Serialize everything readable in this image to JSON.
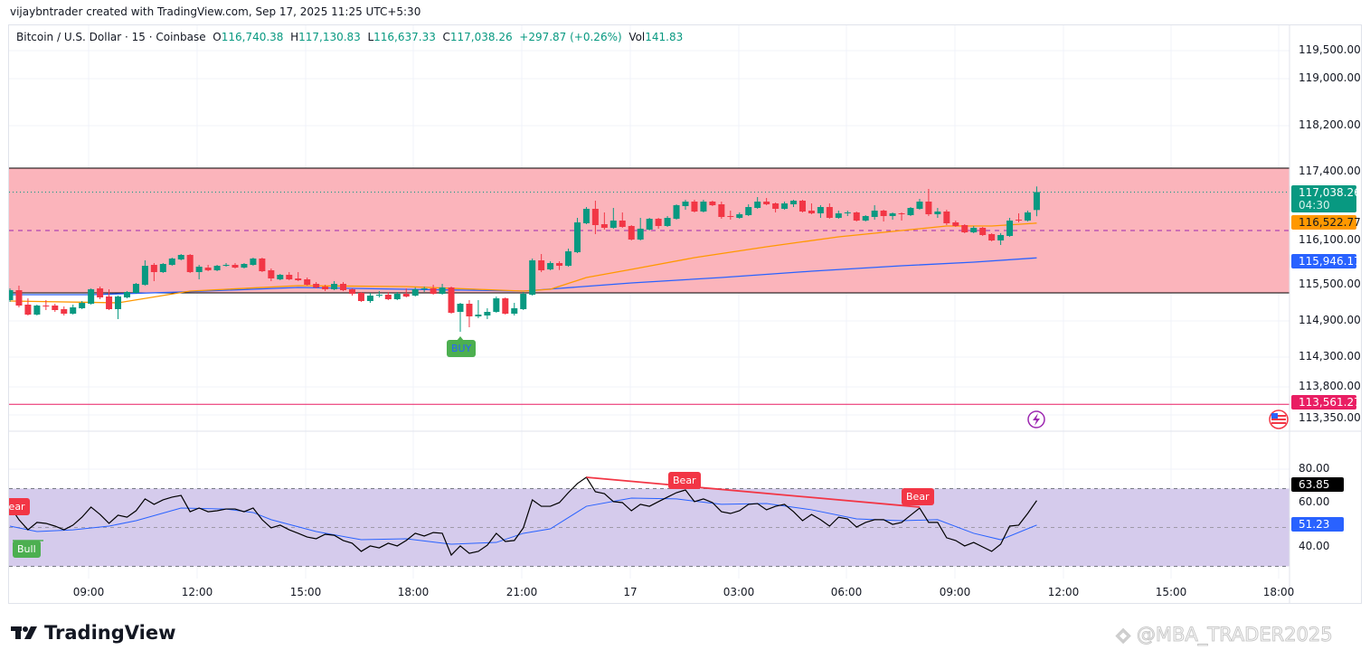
{
  "header": {
    "attribution": "vijaybntrader created with TradingView.com, Sep 17, 2025 11:25 UTC+5:30",
    "symbol": "Bitcoin / U.S. Dollar · 15 · Coinbase",
    "o_label": "O",
    "o": "116,740.38",
    "h_label": "H",
    "h": "117,130.83",
    "l_label": "L",
    "l": "116,637.33",
    "c_label": "C",
    "c": "117,038.26",
    "change": "+297.87 (+0.26%)",
    "vol_label": "Vol",
    "vol": "141.83"
  },
  "price_axis": [
    "119,500.00",
    "119,000.00",
    "118,200.00",
    "117,400.00",
    "116,100.00",
    "115,500.00",
    "114,900.00",
    "114,300.00",
    "113,800.00",
    "113,350.00"
  ],
  "time_axis": [
    "09:00",
    "12:00",
    "15:00",
    "18:00",
    "21:00",
    "17",
    "03:00",
    "06:00",
    "09:00",
    "12:00",
    "15:00",
    "18:00"
  ],
  "rsi_axis": [
    "80.00",
    "60.00",
    "40.00"
  ],
  "tags": {
    "last_price": "117,038.26",
    "countdown": "04:30",
    "ma_orange": "116,522.77",
    "ma_blue": "115,946.17",
    "level": "113,561.27",
    "rsi": "63.85",
    "rsi_ma": "51.23"
  },
  "signals": {
    "buy": "BUY",
    "bear_left": "Bear",
    "bull": "Bull",
    "bear_1": "Bear",
    "bear_2": "Bear"
  },
  "icons": {
    "lightning": "lightning-icon",
    "flag": "us-flag-icon",
    "logo": "tradingview-logo"
  },
  "footer": {
    "logo": "TradingView",
    "watermark": "@MBA_TRADER2025"
  },
  "colors": {
    "up": "#089981",
    "down": "#f23645",
    "zone": "#fbb4bb",
    "ma_orange": "#ff9800",
    "ma_blue": "#2962ff",
    "rsi_band": "#d5cbec",
    "level_line": "#e91e63",
    "divergence": "#f23645"
  },
  "chart_data": {
    "type": "candlestick",
    "interval": "15",
    "ylim": [
      113350,
      119500
    ],
    "zone": [
      115365,
      117435
    ],
    "current_price": 117038.26,
    "dashed_level": 116400,
    "horizontal_level": 113561.27,
    "candles": [
      [
        115245,
        115440,
        115215,
        115410
      ],
      [
        115410,
        115485,
        115125,
        115155
      ],
      [
        115170,
        115275,
        114990,
        115005
      ],
      [
        115005,
        115170,
        114990,
        115155
      ],
      [
        115155,
        115245,
        115080,
        115140
      ],
      [
        115155,
        115185,
        115050,
        115080
      ],
      [
        115095,
        115140,
        114990,
        115020
      ],
      [
        115020,
        115170,
        115005,
        115125
      ],
      [
        115110,
        115230,
        115095,
        115200
      ],
      [
        115185,
        115440,
        115170,
        115425
      ],
      [
        115440,
        115470,
        115260,
        115290
      ],
      [
        115305,
        115425,
        115080,
        115095
      ],
      [
        115095,
        115320,
        114930,
        115305
      ],
      [
        115290,
        115395,
        115275,
        115380
      ],
      [
        115365,
        115530,
        115350,
        115515
      ],
      [
        115500,
        115905,
        115485,
        115815
      ],
      [
        115830,
        115860,
        115560,
        115710
      ],
      [
        115710,
        115860,
        115695,
        115845
      ],
      [
        115830,
        115950,
        115815,
        115935
      ],
      [
        115920,
        116010,
        115905,
        115995
      ],
      [
        115995,
        116010,
        115695,
        115710
      ],
      [
        115710,
        115830,
        115590,
        115800
      ],
      [
        115785,
        115830,
        115725,
        115740
      ],
      [
        115740,
        115830,
        115725,
        115815
      ],
      [
        115815,
        115860,
        115800,
        115830
      ],
      [
        115830,
        115860,
        115770,
        115785
      ],
      [
        115785,
        115860,
        115770,
        115845
      ],
      [
        115830,
        115950,
        115815,
        115935
      ],
      [
        115935,
        115950,
        115710,
        115725
      ],
      [
        115740,
        115770,
        115560,
        115605
      ],
      [
        115590,
        115680,
        115575,
        115665
      ],
      [
        115665,
        115710,
        115575,
        115590
      ],
      [
        115605,
        115710,
        115560,
        115575
      ],
      [
        115590,
        115620,
        115485,
        115500
      ],
      [
        115515,
        115545,
        115440,
        115455
      ],
      [
        115470,
        115500,
        115395,
        115425
      ],
      [
        115425,
        115560,
        115410,
        115515
      ],
      [
        115515,
        115545,
        115395,
        115410
      ],
      [
        115425,
        115440,
        115320,
        115350
      ],
      [
        115365,
        115380,
        115215,
        115230
      ],
      [
        115230,
        115365,
        115200,
        115320
      ],
      [
        115320,
        115395,
        115290,
        115335
      ],
      [
        115335,
        115380,
        115245,
        115260
      ],
      [
        115260,
        115380,
        115245,
        115350
      ],
      [
        115350,
        115440,
        115290,
        115305
      ],
      [
        115320,
        115455,
        115305,
        115425
      ],
      [
        115425,
        115470,
        115380,
        115440
      ],
      [
        115440,
        115500,
        115335,
        115350
      ],
      [
        115350,
        115515,
        115335,
        115455
      ],
      [
        115455,
        115470,
        115020,
        115035
      ],
      [
        115050,
        115200,
        114720,
        115185
      ],
      [
        115185,
        115245,
        114795,
        114975
      ],
      [
        114975,
        115245,
        114945,
        115005
      ],
      [
        114990,
        115110,
        114930,
        115050
      ],
      [
        115050,
        115305,
        115035,
        115275
      ],
      [
        115275,
        115290,
        115005,
        115020
      ],
      [
        115020,
        115200,
        114990,
        115110
      ],
      [
        115095,
        115380,
        115080,
        115350
      ],
      [
        115335,
        115935,
        115320,
        115905
      ],
      [
        115905,
        116010,
        115710,
        115740
      ],
      [
        115755,
        115890,
        115740,
        115860
      ],
      [
        115860,
        115890,
        115745,
        115815
      ],
      [
        115815,
        116100,
        115800,
        116055
      ],
      [
        116040,
        116610,
        116025,
        116535
      ],
      [
        116520,
        116790,
        116505,
        116760
      ],
      [
        116760,
        116895,
        116340,
        116490
      ],
      [
        116505,
        116700,
        116415,
        116445
      ],
      [
        116445,
        116775,
        116430,
        116565
      ],
      [
        116565,
        116700,
        116445,
        116460
      ],
      [
        116475,
        116490,
        116235,
        116250
      ],
      [
        116250,
        116610,
        116235,
        116430
      ],
      [
        116415,
        116610,
        116400,
        116595
      ],
      [
        116595,
        116610,
        116430,
        116475
      ],
      [
        116475,
        116640,
        116460,
        116610
      ],
      [
        116595,
        116835,
        116580,
        116820
      ],
      [
        116805,
        116910,
        116745,
        116880
      ],
      [
        116880,
        116910,
        116700,
        116715
      ],
      [
        116715,
        116910,
        116700,
        116880
      ],
      [
        116880,
        116895,
        116805,
        116820
      ],
      [
        116835,
        116880,
        116595,
        116625
      ],
      [
        116640,
        116730,
        116580,
        116625
      ],
      [
        116610,
        116700,
        116595,
        116670
      ],
      [
        116655,
        116835,
        116640,
        116790
      ],
      [
        116775,
        116955,
        116760,
        116880
      ],
      [
        116880,
        116940,
        116820,
        116835
      ],
      [
        116850,
        116865,
        116700,
        116760
      ],
      [
        116760,
        116880,
        116745,
        116850
      ],
      [
        116835,
        116910,
        116790,
        116895
      ],
      [
        116895,
        116910,
        116700,
        116715
      ],
      [
        116730,
        116850,
        116670,
        116685
      ],
      [
        116685,
        116820,
        116610,
        116790
      ],
      [
        116790,
        116850,
        116595,
        116610
      ],
      [
        116610,
        116730,
        116595,
        116685
      ],
      [
        116685,
        116730,
        116640,
        116700
      ],
      [
        116700,
        116715,
        116550,
        116565
      ],
      [
        116565,
        116655,
        116550,
        116640
      ],
      [
        116625,
        116820,
        116580,
        116730
      ],
      [
        116730,
        116745,
        116550,
        116640
      ],
      [
        116640,
        116700,
        116580,
        116685
      ],
      [
        116685,
        116700,
        116565,
        116670
      ],
      [
        116655,
        116790,
        116640,
        116775
      ],
      [
        116760,
        116925,
        116745,
        116880
      ],
      [
        116880,
        117090,
        116640,
        116670
      ],
      [
        116670,
        116775,
        116610,
        116715
      ],
      [
        116715,
        116745,
        116490,
        116520
      ],
      [
        116535,
        116565,
        116460,
        116475
      ],
      [
        116490,
        116505,
        116355,
        116370
      ],
      [
        116370,
        116475,
        116355,
        116445
      ],
      [
        116445,
        116460,
        116310,
        116325
      ],
      [
        116340,
        116355,
        116220,
        116235
      ],
      [
        116235,
        116355,
        116160,
        116325
      ],
      [
        116310,
        116610,
        116295,
        116565
      ],
      [
        116580,
        116685,
        116535,
        116565
      ],
      [
        116565,
        116730,
        116550,
        116700
      ],
      [
        116740.38,
        117130.83,
        116637.33,
        117038.26
      ]
    ],
    "ma_orange": [
      [
        1,
        115230
      ],
      [
        13,
        115200
      ],
      [
        21,
        115395
      ],
      [
        33,
        115485
      ],
      [
        45,
        115470
      ],
      [
        58,
        115395
      ],
      [
        61,
        115425
      ],
      [
        65,
        115620
      ],
      [
        70,
        115755
      ],
      [
        77,
        115950
      ],
      [
        85,
        116130
      ],
      [
        93,
        116295
      ],
      [
        100,
        116400
      ],
      [
        105,
        116475
      ],
      [
        110,
        116475
      ],
      [
        115,
        116522.77
      ]
    ],
    "ma_blue": [
      [
        1,
        115335
      ],
      [
        10,
        115335
      ],
      [
        20,
        115380
      ],
      [
        33,
        115455
      ],
      [
        45,
        115425
      ],
      [
        58,
        115395
      ],
      [
        62,
        115440
      ],
      [
        70,
        115530
      ],
      [
        80,
        115620
      ],
      [
        90,
        115725
      ],
      [
        100,
        115815
      ],
      [
        108,
        115875
      ],
      [
        115,
        115946.17
      ]
    ],
    "buy_signal_candle": 51,
    "rsi": {
      "levels": {
        "upper": 70,
        "middle": 50,
        "lower": 30
      },
      "ylim": [
        20,
        90
      ],
      "values": [
        60.9,
        54.0,
        48.8,
        52.6,
        52.1,
        50.7,
        48.8,
        51.2,
        55.3,
        60.5,
        56.7,
        52.1,
        56.3,
        55.3,
        58.6,
        64.7,
        61.9,
        64.2,
        65.6,
        66.5,
        58.1,
        60.0,
        58.1,
        58.6,
        59.5,
        59.5,
        58.1,
        60.0,
        54.0,
        49.8,
        51.2,
        48.8,
        47.0,
        45.1,
        44.2,
        46.5,
        46.0,
        43.3,
        41.9,
        37.7,
        40.5,
        39.5,
        41.9,
        40.5,
        43.3,
        47.0,
        45.6,
        47.4,
        47.0,
        35.8,
        40.5,
        36.7,
        37.7,
        40.9,
        47.0,
        42.8,
        43.3,
        49.8,
        64.2,
        60.9,
        60.9,
        62.8,
        67.9,
        72.6,
        75.8,
        68.4,
        67.4,
        63.3,
        62.8,
        58.6,
        61.9,
        60.9,
        63.3,
        65.6,
        67.9,
        69.3,
        63.3,
        64.7,
        62.8,
        58.1,
        57.2,
        58.6,
        61.9,
        62.3,
        59.1,
        60.9,
        61.9,
        58.1,
        53.5,
        56.7,
        54.0,
        50.7,
        55.3,
        54.4,
        50.2,
        52.6,
        54.0,
        54.0,
        51.6,
        52.6,
        56.3,
        60.0,
        52.6,
        52.6,
        44.7,
        43.3,
        40.5,
        42.3,
        40.0,
        37.7,
        41.4,
        50.7,
        51.2,
        57.2,
        63.85
      ],
      "ma": [
        [
          1,
          50.7
        ],
        [
          4,
          47.9
        ],
        [
          8,
          48.8
        ],
        [
          12,
          50.7
        ],
        [
          15,
          53.5
        ],
        [
          20,
          60.0
        ],
        [
          25,
          59.5
        ],
        [
          28,
          57.7
        ],
        [
          30,
          54.0
        ],
        [
          35,
          47.9
        ],
        [
          40,
          43.7
        ],
        [
          45,
          44.2
        ],
        [
          50,
          41.4
        ],
        [
          55,
          42.3
        ],
        [
          58,
          47.0
        ],
        [
          61,
          49.3
        ],
        [
          65,
          60.9
        ],
        [
          70,
          65.1
        ],
        [
          75,
          64.7
        ],
        [
          80,
          61.9
        ],
        [
          85,
          62.3
        ],
        [
          90,
          59.1
        ],
        [
          95,
          54.4
        ],
        [
          100,
          53.5
        ],
        [
          104,
          54.0
        ],
        [
          108,
          47.0
        ],
        [
          111,
          43.7
        ],
        [
          115,
          51.23
        ]
      ],
      "divergence": [
        [
          65,
          75.8
        ],
        [
          102,
          60.5
        ]
      ]
    }
  }
}
